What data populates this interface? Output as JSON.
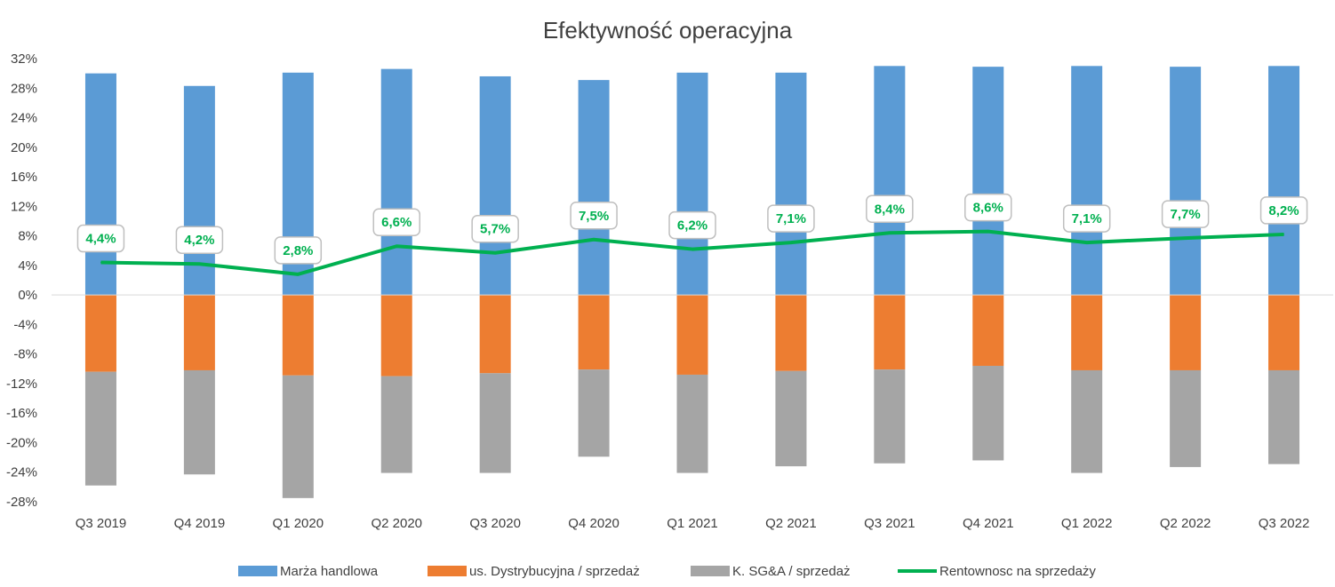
{
  "chart_data": {
    "type": "bar",
    "title": "Efektywność operacyjna",
    "categories": [
      "Q3 2019",
      "Q4 2019",
      "Q1 2020",
      "Q2 2020",
      "Q3 2020",
      "Q4 2020",
      "Q1 2021",
      "Q2 2021",
      "Q3 2021",
      "Q4 2021",
      "Q1 2022",
      "Q2 2022",
      "Q3 2022"
    ],
    "ylim": [
      -28,
      32
    ],
    "yticks": [
      32,
      28,
      24,
      20,
      16,
      12,
      8,
      4,
      0,
      -4,
      -8,
      -12,
      -16,
      -20,
      -24,
      -28
    ],
    "ytick_labels": [
      "32%",
      "28%",
      "24%",
      "20%",
      "16%",
      "12%",
      "8%",
      "4%",
      "0%",
      "-4%",
      "-8%",
      "-12%",
      "-16%",
      "-20%",
      "-24%",
      "-28%"
    ],
    "series": [
      {
        "name": "Marża handlowa",
        "kind": "bar",
        "color": "#5B9BD5",
        "values": [
          30.0,
          28.3,
          30.1,
          30.6,
          29.6,
          29.1,
          30.1,
          30.1,
          31.0,
          30.9,
          31.0,
          30.9,
          31.0
        ]
      },
      {
        "name": "us. Dystrybucyjna / sprzedaż",
        "kind": "bar",
        "color": "#ED7D31",
        "values": [
          -10.4,
          -10.2,
          -10.9,
          -11.0,
          -10.6,
          -10.1,
          -10.8,
          -10.3,
          -10.1,
          -9.6,
          -10.2,
          -10.2,
          -10.2
        ]
      },
      {
        "name": "K. SG&A / sprzedaż",
        "kind": "bar",
        "color": "#A5A5A5",
        "values": [
          -15.4,
          -14.1,
          -16.6,
          -13.1,
          -13.5,
          -11.8,
          -13.3,
          -12.9,
          -12.7,
          -12.8,
          -13.9,
          -13.1,
          -12.7
        ]
      },
      {
        "name": "Rentownosc na sprzedaży",
        "kind": "line",
        "color": "#00B050",
        "values": [
          4.4,
          4.2,
          2.8,
          6.6,
          5.7,
          7.5,
          6.2,
          7.1,
          8.4,
          8.6,
          7.1,
          7.7,
          8.2
        ],
        "labels": [
          "4,4%",
          "4,2%",
          "2,8%",
          "6,6%",
          "5,7%",
          "7,5%",
          "6,2%",
          "7,1%",
          "8,4%",
          "8,6%",
          "7,1%",
          "7,7%",
          "8,2%"
        ]
      }
    ],
    "grid": false,
    "legend": "bottom"
  }
}
